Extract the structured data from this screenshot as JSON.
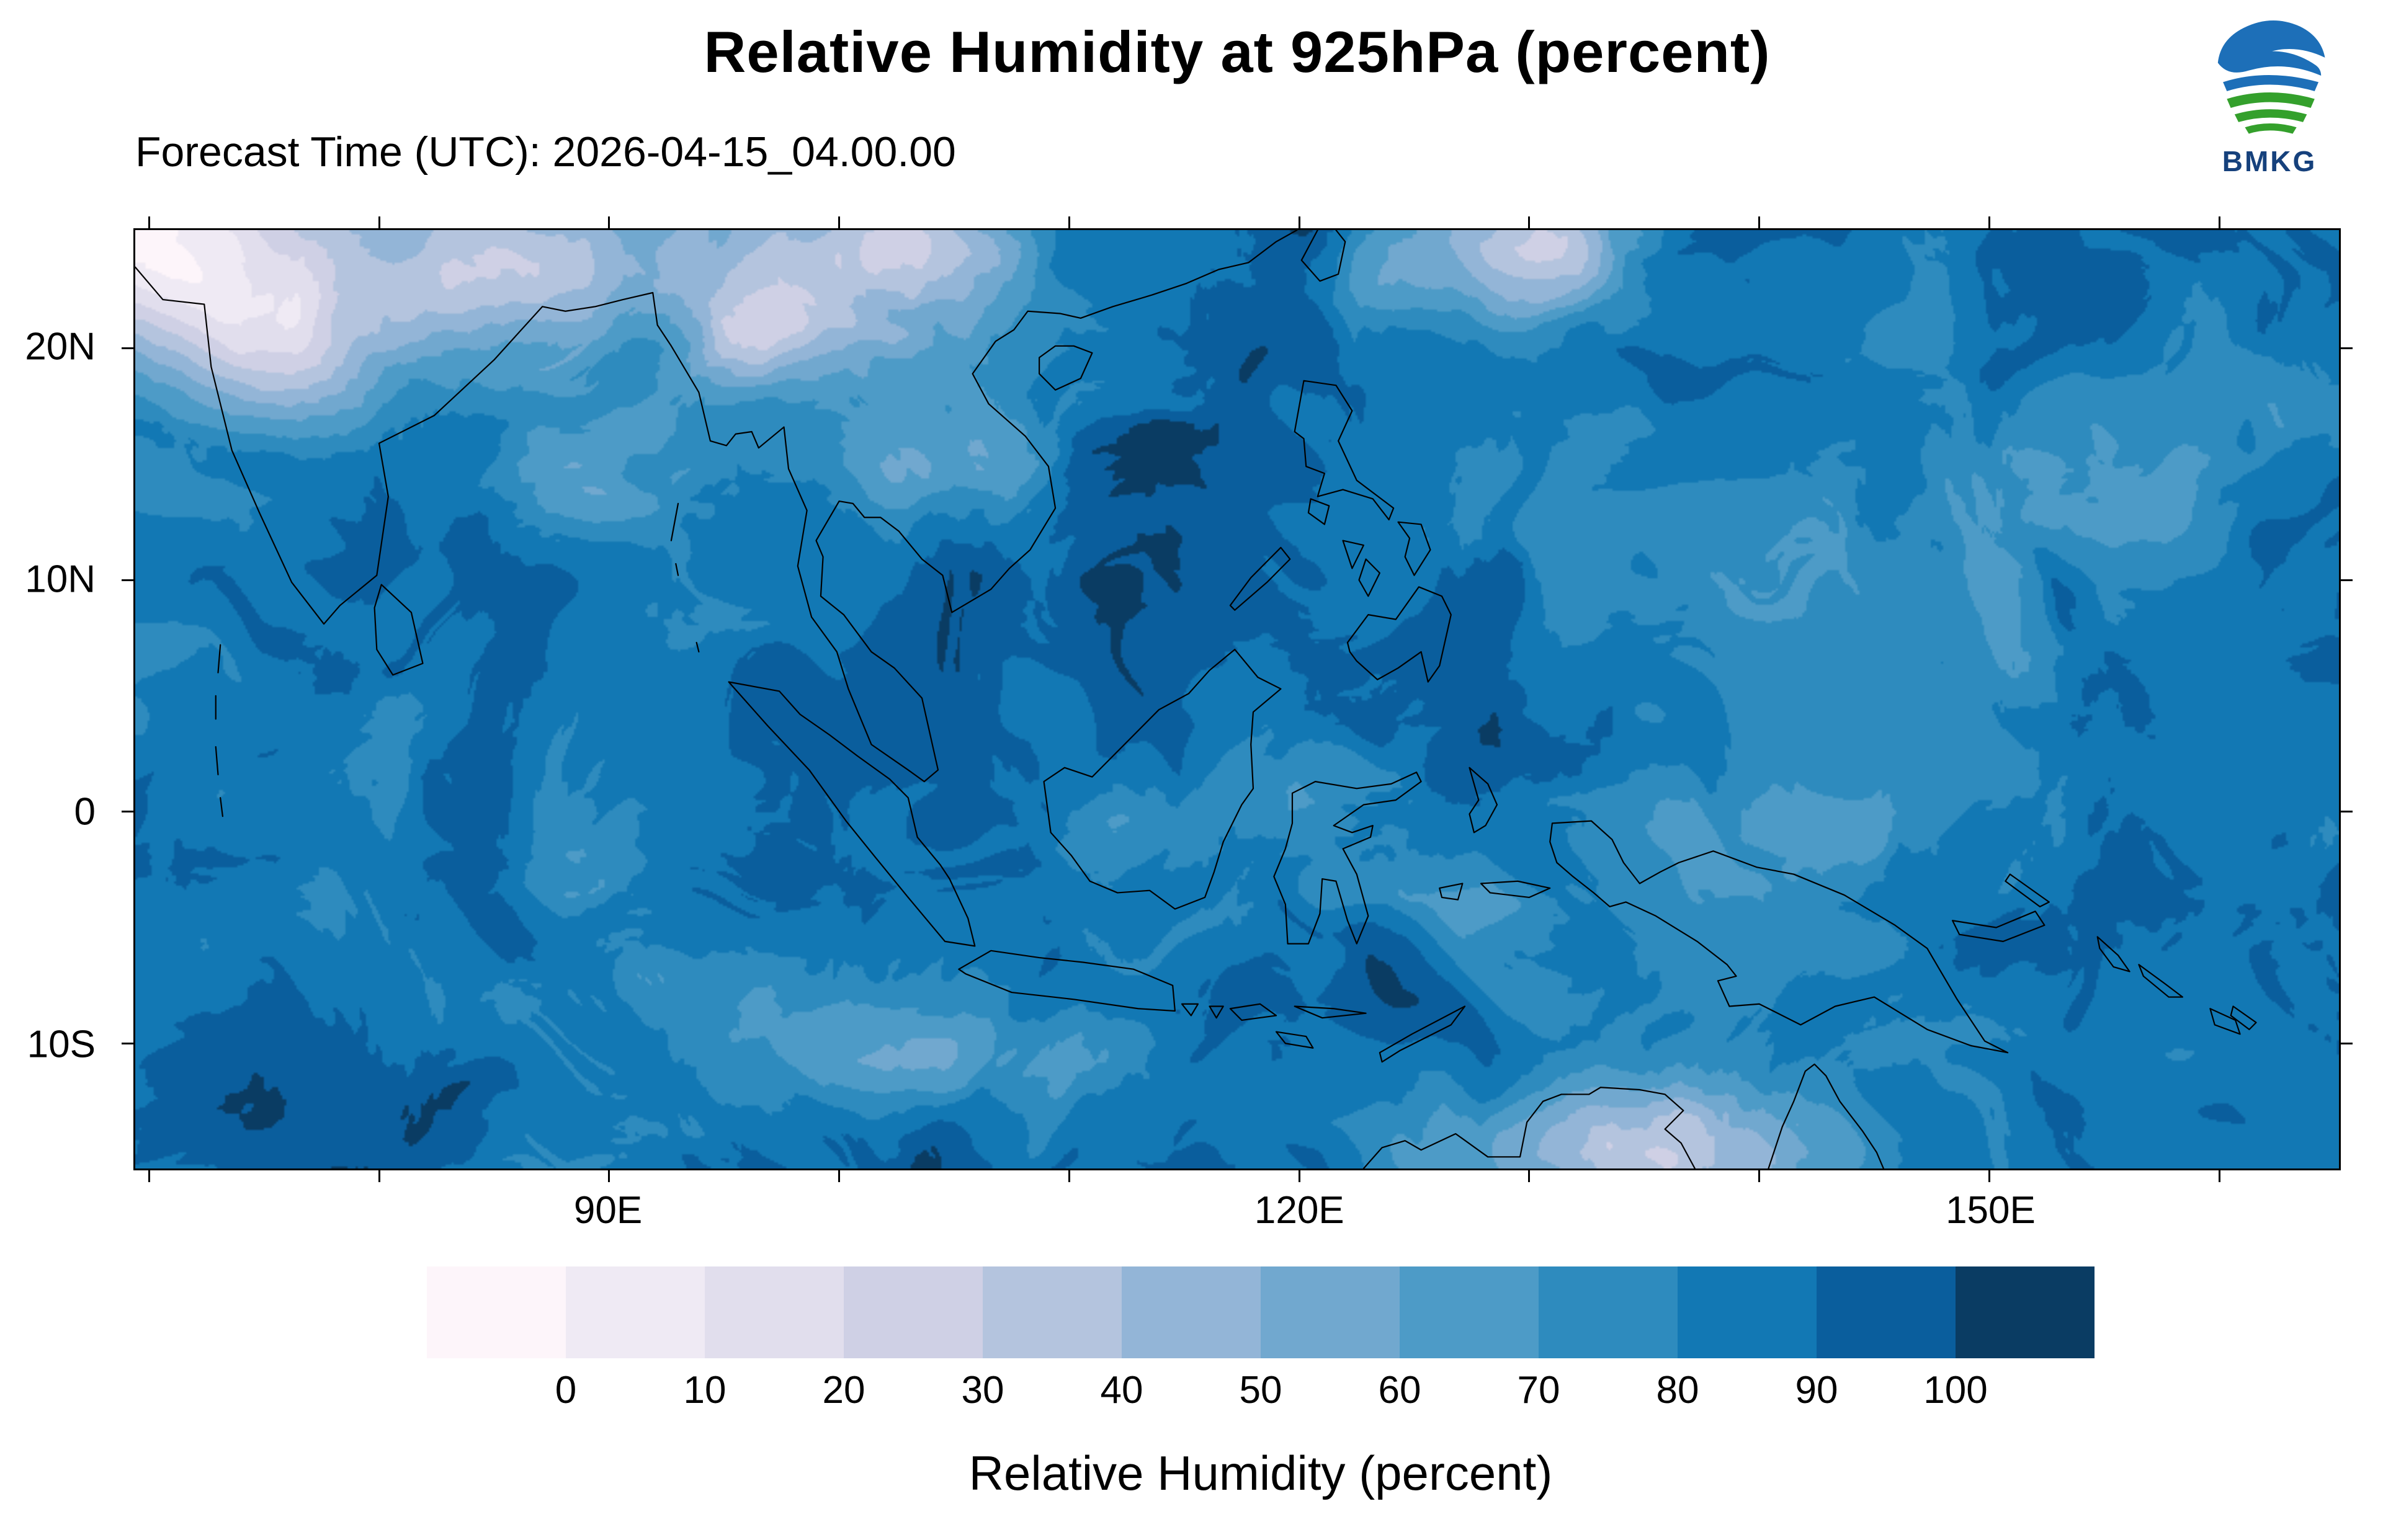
{
  "header": {
    "title": "Relative Humidity at 925hPa (percent)",
    "subtitle": "Forecast Time (UTC): 2026-04-15_04.00.00",
    "logo_text": "BMKG"
  },
  "map": {
    "lon_min": 69.4,
    "lon_max": 165.2,
    "lat_min": -15.4,
    "lat_max": 25.1,
    "x_ticks": [
      {
        "label": "90E",
        "lon": 90
      },
      {
        "label": "120E",
        "lon": 120
      },
      {
        "label": "150E",
        "lon": 150
      }
    ],
    "y_ticks": [
      {
        "label": "20N",
        "lat": 20
      },
      {
        "label": "10N",
        "lat": 10
      },
      {
        "label": "0",
        "lat": 0
      },
      {
        "label": "10S",
        "lat": -10
      }
    ]
  },
  "colorbar": {
    "levels": [
      0,
      10,
      20,
      30,
      40,
      50,
      60,
      70,
      80,
      90,
      100
    ],
    "colors": [
      "#fdf5fa",
      "#efeaf4",
      "#e1deed",
      "#cfd0e5",
      "#b4c4de",
      "#93b5d7",
      "#71a8cf",
      "#4d9bc7",
      "#2e8bbe",
      "#1278b4",
      "#0a5e9d",
      "#0a3c63"
    ],
    "caption": "Relative Humidity (percent)"
  },
  "chart_data": {
    "type": "heatmap",
    "title": "Relative Humidity at 925hPa (percent)",
    "subtitle": "Forecast Time (UTC): 2026-04-15_04.00.00",
    "variable": "Relative Humidity",
    "units": "percent",
    "pressure_level": "925hPa",
    "colorbar_label": "Relative Humidity (percent)",
    "levels": [
      0,
      10,
      20,
      30,
      40,
      50,
      60,
      70,
      80,
      90,
      100
    ],
    "palette": [
      "#fdf5fa",
      "#efeaf4",
      "#e1deed",
      "#cfd0e5",
      "#b4c4de",
      "#93b5d7",
      "#71a8cf",
      "#4d9bc7",
      "#2e8bbe",
      "#1278b4",
      "#0a5e9d",
      "#0a3c63"
    ],
    "x_axis": {
      "ticks": [
        "90E",
        "120E",
        "150E"
      ],
      "range_deg_east": [
        69.4,
        165.2
      ]
    },
    "y_axis": {
      "ticks": [
        "20N",
        "10N",
        "0",
        "10S"
      ],
      "range_deg_north": [
        -15.4,
        25.1
      ]
    },
    "legend_position": "bottom",
    "notable_features": [
      "very dry air (<20%) over northwest India / Pakistan corner",
      "dry band (20-50%) over northern India, northern Indochina and southern China",
      "pale dry patch near 130E 24N in the subtropical western Pacific",
      "dry zone (<40%) over northern Australia along the bottom edge",
      "moist air (80-100%) over most equatorial oceans with filamentary 50-80% streaks and swirls"
    ]
  }
}
